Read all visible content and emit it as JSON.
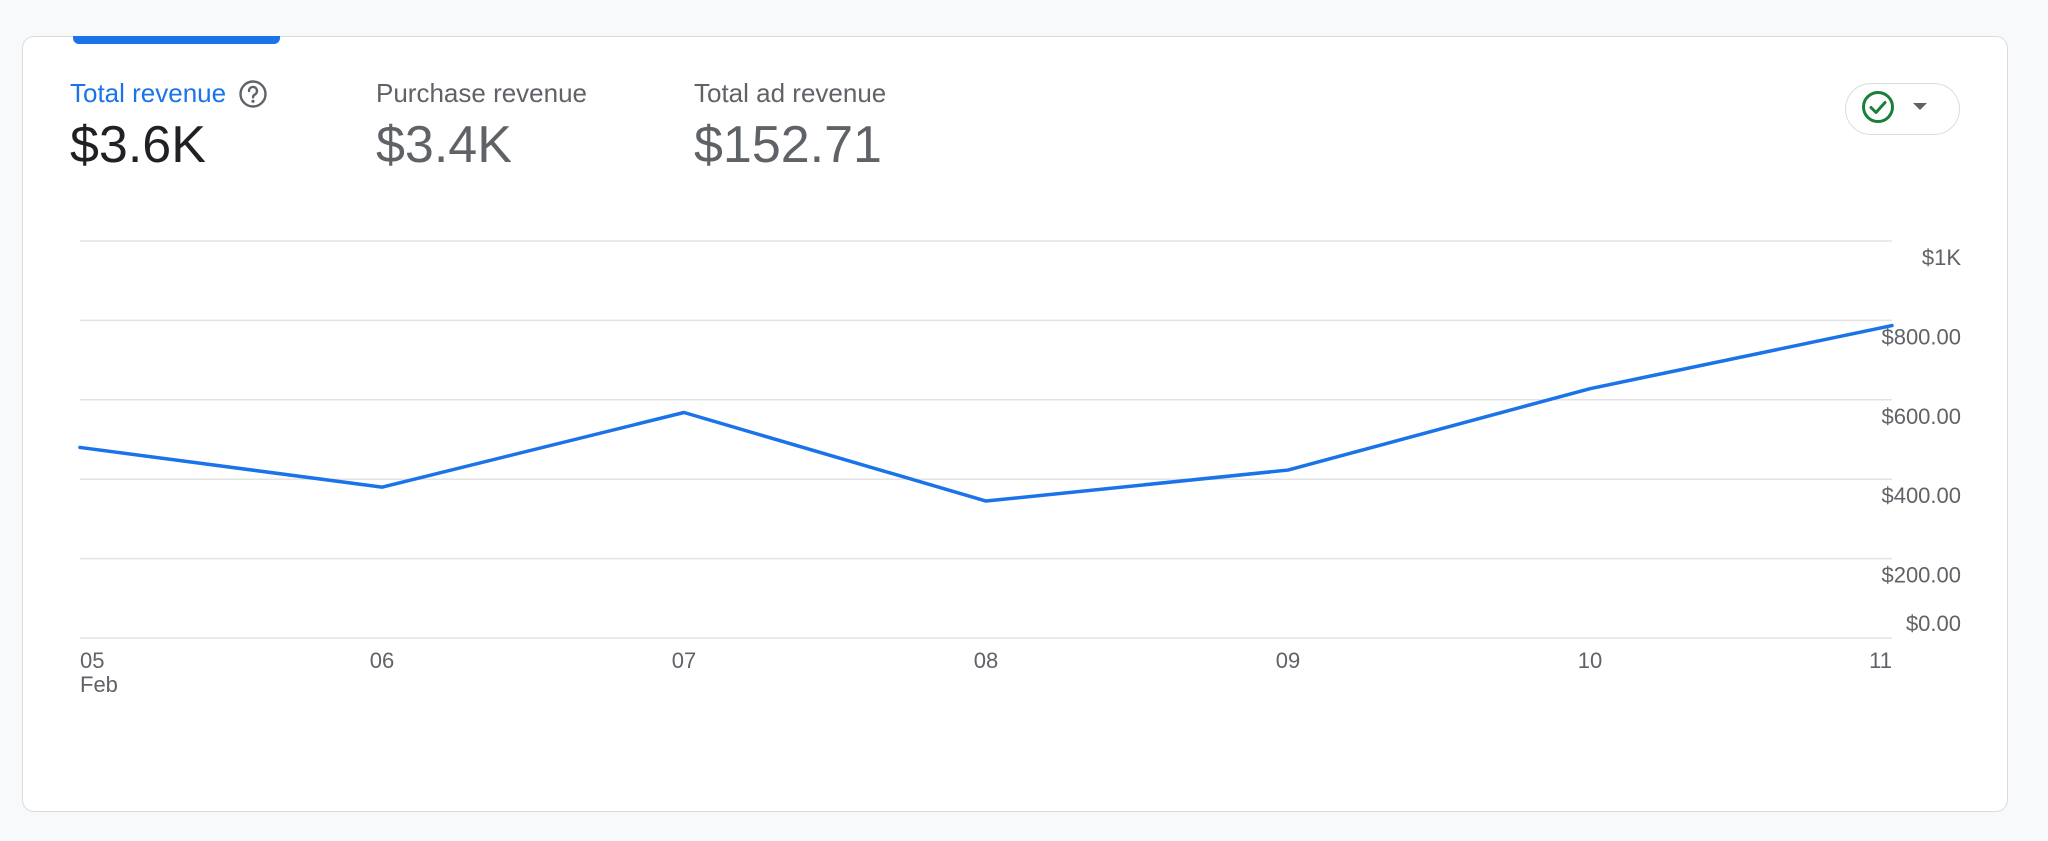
{
  "metrics": [
    {
      "label": "Total revenue",
      "value": "$3.6K",
      "active": true
    },
    {
      "label": "Purchase revenue",
      "value": "$3.4K",
      "active": false
    },
    {
      "label": "Total ad revenue",
      "value": "$152.71",
      "active": false
    }
  ],
  "colors": {
    "accent": "#1a73e8",
    "line": "#1a73e8",
    "check": "#188038"
  },
  "icons": {
    "help": "help-circle-icon",
    "check": "check-circle-icon",
    "dropdown": "caret-down-icon"
  },
  "chart_data": {
    "type": "line",
    "x": [
      "05",
      "06",
      "07",
      "08",
      "09",
      "10",
      "11"
    ],
    "x_sublabel": "Feb",
    "series": [
      {
        "values": [
          480,
          380,
          568,
          345,
          423,
          628,
          787
        ]
      }
    ],
    "yticks": [
      {
        "value": 0,
        "label": "$0.00"
      },
      {
        "value": 200,
        "label": "$200.00"
      },
      {
        "value": 400,
        "label": "$400.00"
      },
      {
        "value": 600,
        "label": "$600.00"
      },
      {
        "value": 800,
        "label": "$800.00"
      },
      {
        "value": 1000,
        "label": "$1K"
      }
    ],
    "ylim": [
      0,
      1000
    ],
    "grid": true,
    "legend": "none"
  }
}
